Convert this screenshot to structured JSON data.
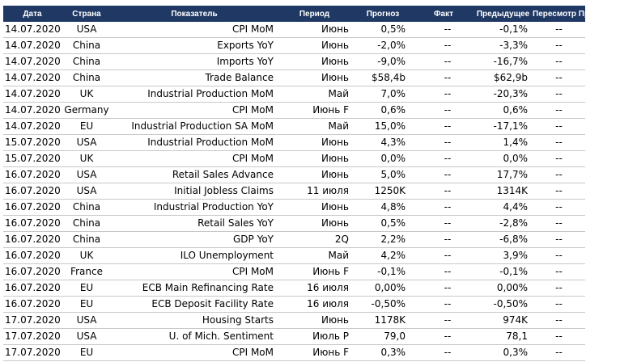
{
  "headers": [
    "Дата",
    "Страна",
    "Показатель",
    "Период",
    "Прогноз",
    "Факт",
    "Предыдущее",
    "Пересмотр Пр."
  ],
  "rows": [
    {
      "date": "14.07.2020",
      "country": "USA",
      "indicator": "CPI MoM",
      "period": "Июнь",
      "forecast": "0,5%",
      "fact": "--",
      "previous": "-0,1%",
      "revision": "--"
    },
    {
      "date": "14.07.2020",
      "country": "China",
      "indicator": "Exports YoY",
      "period": "Июнь",
      "forecast": "-2,0%",
      "fact": "--",
      "previous": "-3,3%",
      "revision": "--"
    },
    {
      "date": "14.07.2020",
      "country": "China",
      "indicator": "Imports YoY",
      "period": "Июнь",
      "forecast": "-9,0%",
      "fact": "--",
      "previous": "-16,7%",
      "revision": "--"
    },
    {
      "date": "14.07.2020",
      "country": "China",
      "indicator": "Trade Balance",
      "period": "Июнь",
      "forecast": "$58,4b",
      "fact": "--",
      "previous": "$62,9b",
      "revision": "--"
    },
    {
      "date": "14.07.2020",
      "country": "UK",
      "indicator": "Industrial Production MoM",
      "period": "Май",
      "forecast": "7,0%",
      "fact": "--",
      "previous": "-20,3%",
      "revision": "--"
    },
    {
      "date": "14.07.2020",
      "country": "Germany",
      "indicator": "CPI MoM",
      "period": "Июнь F",
      "forecast": "0,6%",
      "fact": "--",
      "previous": "0,6%",
      "revision": "--"
    },
    {
      "date": "14.07.2020",
      "country": "EU",
      "indicator": "Industrial Production SA MoM",
      "period": "Май",
      "forecast": "15,0%",
      "fact": "--",
      "previous": "-17,1%",
      "revision": "--"
    },
    {
      "date": "15.07.2020",
      "country": "USA",
      "indicator": "Industrial Production MoM",
      "period": "Июнь",
      "forecast": "4,3%",
      "fact": "--",
      "previous": "1,4%",
      "revision": "--"
    },
    {
      "date": "15.07.2020",
      "country": "UK",
      "indicator": "CPI MoM",
      "period": "Июнь",
      "forecast": "0,0%",
      "fact": "--",
      "previous": "0,0%",
      "revision": "--"
    },
    {
      "date": "16.07.2020",
      "country": "USA",
      "indicator": "Retail Sales Advance",
      "period": "Июнь",
      "forecast": "5,0%",
      "fact": "--",
      "previous": "17,7%",
      "revision": "--"
    },
    {
      "date": "16.07.2020",
      "country": "USA",
      "indicator": "Initial Jobless Claims",
      "period": "11 июля",
      "forecast": "1250K",
      "fact": "--",
      "previous": "1314K",
      "revision": "--"
    },
    {
      "date": "16.07.2020",
      "country": "China",
      "indicator": "Industrial Production YoY",
      "period": "Июнь",
      "forecast": "4,8%",
      "fact": "--",
      "previous": "4,4%",
      "revision": "--"
    },
    {
      "date": "16.07.2020",
      "country": "China",
      "indicator": "Retail Sales YoY",
      "period": "Июнь",
      "forecast": "0,5%",
      "fact": "--",
      "previous": "-2,8%",
      "revision": "--"
    },
    {
      "date": "16.07.2020",
      "country": "China",
      "indicator": "GDP YoY",
      "period": "2Q",
      "forecast": "2,2%",
      "fact": "--",
      "previous": "-6,8%",
      "revision": "--"
    },
    {
      "date": "16.07.2020",
      "country": "UK",
      "indicator": "ILO Unemployment",
      "period": "Май",
      "forecast": "4,2%",
      "fact": "--",
      "previous": "3,9%",
      "revision": "--"
    },
    {
      "date": "16.07.2020",
      "country": "France",
      "indicator": "CPI MoM",
      "period": "Июнь F",
      "forecast": "-0,1%",
      "fact": "--",
      "previous": "-0,1%",
      "revision": "--"
    },
    {
      "date": "16.07.2020",
      "country": "EU",
      "indicator": "ECB Main Refinancing Rate",
      "period": "16 июля",
      "forecast": "0,00%",
      "fact": "--",
      "previous": "0,00%",
      "revision": "--"
    },
    {
      "date": "16.07.2020",
      "country": "EU",
      "indicator": "ECB Deposit Facility Rate",
      "period": "16 июля",
      "forecast": "-0,50%",
      "fact": "--",
      "previous": "-0,50%",
      "revision": "--"
    },
    {
      "date": "17.07.2020",
      "country": "USA",
      "indicator": "Housing Starts",
      "period": "Июнь",
      "forecast": "1178K",
      "fact": "--",
      "previous": "974K",
      "revision": "--"
    },
    {
      "date": "17.07.2020",
      "country": "USA",
      "indicator": "U. of Mich. Sentiment",
      "period": "Июль P",
      "forecast": "79,0",
      "fact": "--",
      "previous": "78,1",
      "revision": "--"
    },
    {
      "date": "17.07.2020",
      "country": "EU",
      "indicator": "CPI MoM",
      "period": "Июнь F",
      "forecast": "0,3%",
      "fact": "--",
      "previous": "0,3%",
      "revision": "--"
    }
  ]
}
